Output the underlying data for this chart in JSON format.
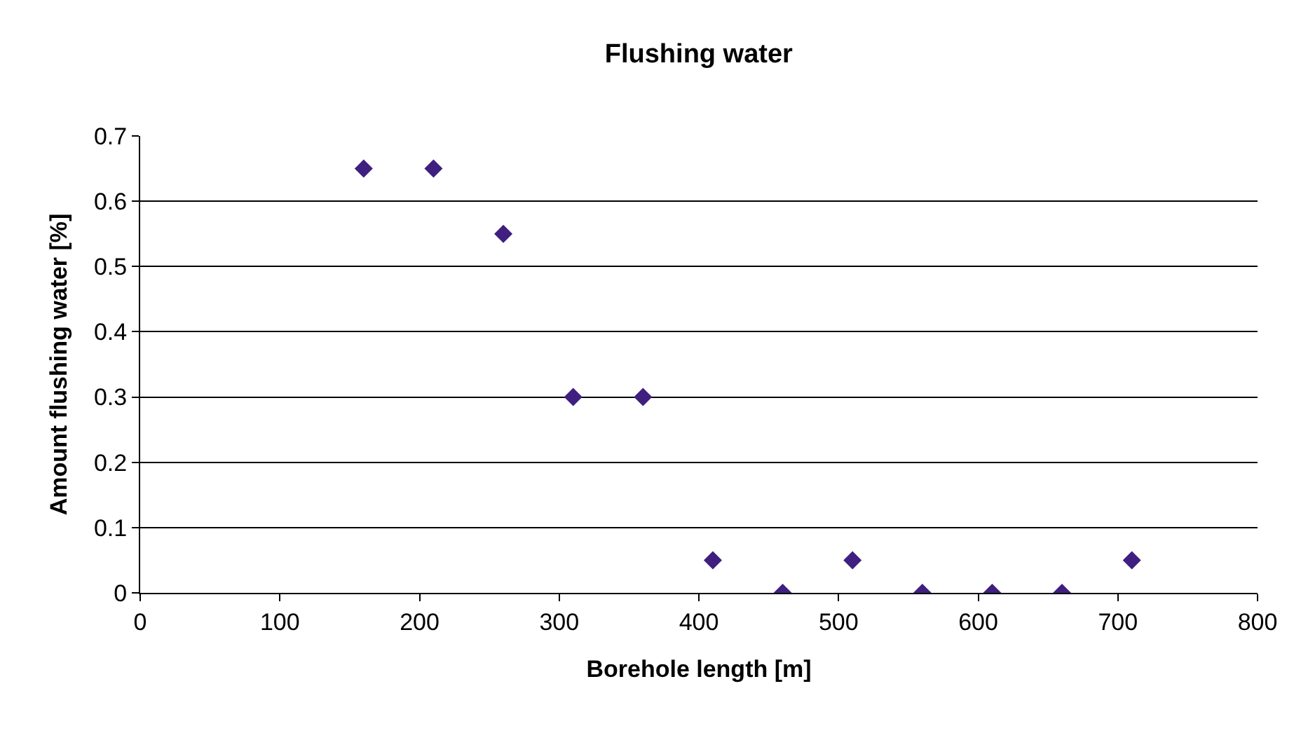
{
  "chart_data": {
    "type": "scatter",
    "title": "Flushing water",
    "xlabel": "Borehole length [m]",
    "ylabel": "Amount flushing water [%]",
    "x": [
      160,
      210,
      260,
      310,
      360,
      410,
      460,
      510,
      560,
      610,
      660,
      710
    ],
    "series": [
      {
        "color": "#3f1f7f",
        "values": [
          0.65,
          0.65,
          0.55,
          0.3,
          0.3,
          0.05,
          0,
          0.05,
          0,
          0,
          0,
          0.05
        ]
      }
    ],
    "xlim": [
      0,
      800
    ],
    "xticks": [
      0,
      100,
      200,
      300,
      400,
      500,
      600,
      700,
      800
    ],
    "ylim": [
      0,
      0.7
    ],
    "yticks": [
      0,
      0.1,
      0.2,
      0.3,
      0.4,
      0.5,
      0.6,
      0.7
    ],
    "grid": "y",
    "legend": false,
    "marker": "diamond"
  }
}
